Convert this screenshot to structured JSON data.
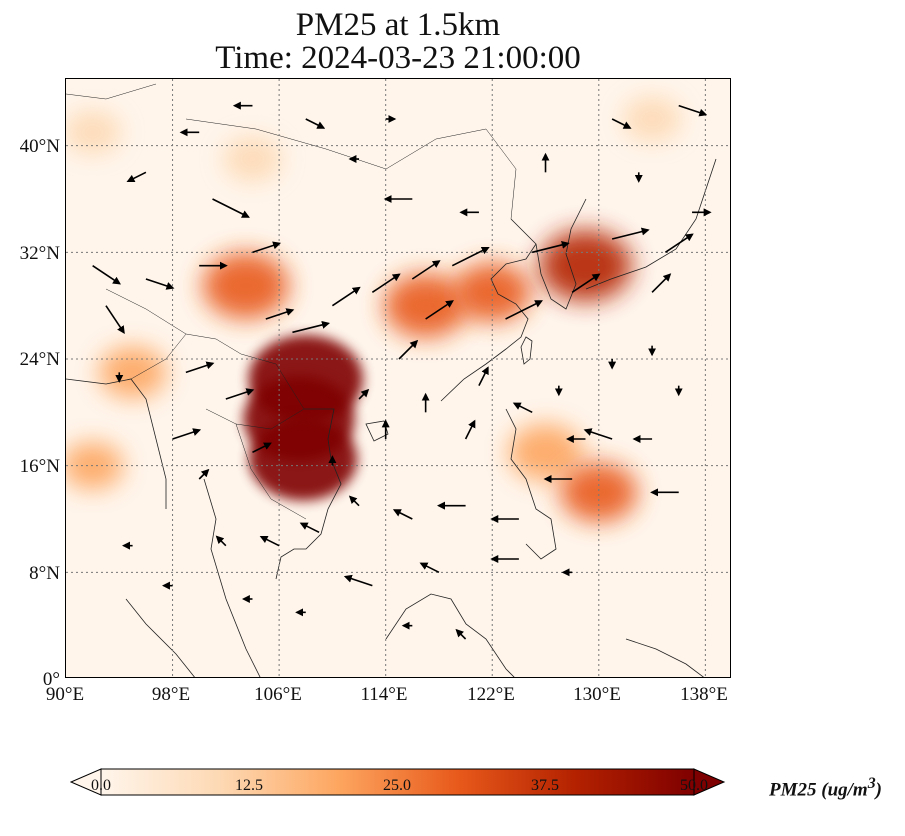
{
  "title": {
    "line1": "PM25 at 1.5km",
    "line2": "Time: 2024-03-23 21:00:00"
  },
  "map": {
    "lat_ticks": [
      "40°N",
      "32°N",
      "24°N",
      "16°N",
      "8°N",
      "0°"
    ],
    "lon_ticks": [
      "90°E",
      "98°E",
      "106°E",
      "114°E",
      "122°E",
      "130°E",
      "138°E"
    ],
    "gridlines": true,
    "extent": {
      "lon": [
        90,
        140
      ],
      "lat": [
        0,
        45
      ]
    }
  },
  "colorbar": {
    "label": "PM25 (ug/m",
    "label_sup": "3",
    "label_close": ")",
    "ticks": [
      "0.0",
      "12.5",
      "25.0",
      "37.5",
      "50.0"
    ],
    "range": [
      0,
      50
    ],
    "extend": "both",
    "colors": [
      "#fff5eb",
      "#fdd9b4",
      "#fda660",
      "#e85a1b",
      "#b32100",
      "#7f0000"
    ]
  },
  "chart_data": {
    "type": "heatmap",
    "variable": "PM25",
    "unit": "ug/m3",
    "hotspots": [
      {
        "lon": 108.0,
        "lat": 22.5,
        "value": 50
      },
      {
        "lon": 107.5,
        "lat": 19.5,
        "value": 48
      },
      {
        "lon": 107.8,
        "lat": 16.5,
        "value": 46
      },
      {
        "lon": 103.5,
        "lat": 29.5,
        "value": 32
      },
      {
        "lon": 117.0,
        "lat": 28.0,
        "value": 30
      },
      {
        "lon": 122.0,
        "lat": 29.0,
        "value": 26
      },
      {
        "lon": 129.0,
        "lat": 31.0,
        "value": 36
      },
      {
        "lon": 126.0,
        "lat": 17.0,
        "value": 24
      },
      {
        "lon": 130.0,
        "lat": 14.0,
        "value": 26
      },
      {
        "lon": 95.0,
        "lat": 23.0,
        "value": 20
      },
      {
        "lon": 104.0,
        "lat": 39.0,
        "value": 14
      },
      {
        "lon": 92.0,
        "lat": 41.0,
        "value": 13
      },
      {
        "lon": 134.0,
        "lat": 42.0,
        "value": 14
      },
      {
        "lon": 92.0,
        "lat": 16.0,
        "value": 16
      }
    ],
    "wind": [
      {
        "lon": 92,
        "lat": 31,
        "u": 3,
        "v": -2
      },
      {
        "lon": 93,
        "lat": 28,
        "u": 2,
        "v": -3
      },
      {
        "lon": 96,
        "lat": 30,
        "u": 3,
        "v": -1
      },
      {
        "lon": 101,
        "lat": 36,
        "u": 4,
        "v": -2
      },
      {
        "lon": 100,
        "lat": 31,
        "u": 3,
        "v": 0
      },
      {
        "lon": 104,
        "lat": 32,
        "u": 3,
        "v": 1
      },
      {
        "lon": 105,
        "lat": 27,
        "u": 3,
        "v": 1
      },
      {
        "lon": 107,
        "lat": 26,
        "u": 4,
        "v": 1
      },
      {
        "lon": 110,
        "lat": 28,
        "u": 3,
        "v": 2
      },
      {
        "lon": 113,
        "lat": 29,
        "u": 3,
        "v": 2
      },
      {
        "lon": 116,
        "lat": 30,
        "u": 3,
        "v": 2
      },
      {
        "lon": 117,
        "lat": 27,
        "u": 3,
        "v": 2
      },
      {
        "lon": 119,
        "lat": 31,
        "u": 4,
        "v": 2
      },
      {
        "lon": 123,
        "lat": 27,
        "u": 4,
        "v": 2
      },
      {
        "lon": 125,
        "lat": 32,
        "u": 4,
        "v": 1
      },
      {
        "lon": 128,
        "lat": 29,
        "u": 3,
        "v": 2
      },
      {
        "lon": 131,
        "lat": 33,
        "u": 4,
        "v": 1
      },
      {
        "lon": 134,
        "lat": 29,
        "u": 2,
        "v": 2
      },
      {
        "lon": 135,
        "lat": 32,
        "u": 3,
        "v": 2
      },
      {
        "lon": 137,
        "lat": 35,
        "u": 2,
        "v": 0
      },
      {
        "lon": 96,
        "lat": 38,
        "u": -2,
        "v": -1
      },
      {
        "lon": 100,
        "lat": 41,
        "u": -2,
        "v": 0
      },
      {
        "lon": 104,
        "lat": 43,
        "u": -2,
        "v": 0
      },
      {
        "lon": 108,
        "lat": 42,
        "u": 2,
        "v": -1
      },
      {
        "lon": 112,
        "lat": 39,
        "u": -1,
        "v": 0
      },
      {
        "lon": 116,
        "lat": 36,
        "u": -3,
        "v": 0
      },
      {
        "lon": 121,
        "lat": 35,
        "u": -2,
        "v": 0
      },
      {
        "lon": 126,
        "lat": 38,
        "u": 0,
        "v": 2
      },
      {
        "lon": 131,
        "lat": 42,
        "u": 2,
        "v": -1
      },
      {
        "lon": 136,
        "lat": 43,
        "u": 3,
        "v": -1
      },
      {
        "lon": 94,
        "lat": 23,
        "u": 0,
        "v": -1
      },
      {
        "lon": 99,
        "lat": 23,
        "u": 3,
        "v": 1
      },
      {
        "lon": 102,
        "lat": 21,
        "u": 3,
        "v": 1
      },
      {
        "lon": 98,
        "lat": 18,
        "u": 3,
        "v": 1
      },
      {
        "lon": 100,
        "lat": 15,
        "u": 1,
        "v": 1
      },
      {
        "lon": 104,
        "lat": 17,
        "u": 2,
        "v": 1
      },
      {
        "lon": 112,
        "lat": 21,
        "u": 1,
        "v": 1
      },
      {
        "lon": 115,
        "lat": 24,
        "u": 2,
        "v": 2
      },
      {
        "lon": 114,
        "lat": 18,
        "u": 0,
        "v": 2
      },
      {
        "lon": 117,
        "lat": 20,
        "u": 0,
        "v": 2
      },
      {
        "lon": 120,
        "lat": 18,
        "u": 1,
        "v": 2
      },
      {
        "lon": 121,
        "lat": 22,
        "u": 1,
        "v": 2
      },
      {
        "lon": 125,
        "lat": 20,
        "u": -2,
        "v": 1
      },
      {
        "lon": 129,
        "lat": 18,
        "u": -2,
        "v": 0
      },
      {
        "lon": 131,
        "lat": 18,
        "u": -3,
        "v": 1
      },
      {
        "lon": 134,
        "lat": 18,
        "u": -2,
        "v": 0
      },
      {
        "lon": 136,
        "lat": 14,
        "u": -3,
        "v": 0
      },
      {
        "lon": 128,
        "lat": 15,
        "u": -3,
        "v": 0
      },
      {
        "lon": 124,
        "lat": 12,
        "u": -3,
        "v": 0
      },
      {
        "lon": 120,
        "lat": 13,
        "u": -3,
        "v": 0
      },
      {
        "lon": 116,
        "lat": 12,
        "u": -2,
        "v": 1
      },
      {
        "lon": 112,
        "lat": 13,
        "u": -1,
        "v": 1
      },
      {
        "lon": 110,
        "lat": 16,
        "u": 0,
        "v": 1
      },
      {
        "lon": 109,
        "lat": 11,
        "u": -2,
        "v": 1
      },
      {
        "lon": 106,
        "lat": 10,
        "u": -2,
        "v": 1
      },
      {
        "lon": 102,
        "lat": 10,
        "u": -1,
        "v": 1
      },
      {
        "lon": 98,
        "lat": 7,
        "u": -1,
        "v": 0
      },
      {
        "lon": 95,
        "lat": 10,
        "u": -1,
        "v": 0
      },
      {
        "lon": 104,
        "lat": 6,
        "u": -1,
        "v": 0
      },
      {
        "lon": 108,
        "lat": 5,
        "u": -1,
        "v": 0
      },
      {
        "lon": 113,
        "lat": 7,
        "u": -3,
        "v": 1
      },
      {
        "lon": 118,
        "lat": 8,
        "u": -2,
        "v": 1
      },
      {
        "lon": 124,
        "lat": 9,
        "u": -3,
        "v": 0
      },
      {
        "lon": 128,
        "lat": 8,
        "u": -1,
        "v": 0
      },
      {
        "lon": 116,
        "lat": 4,
        "u": -1,
        "v": 0
      },
      {
        "lon": 120,
        "lat": 3,
        "u": -1,
        "v": 1
      },
      {
        "lon": 110,
        "lat": 2,
        "u": 0,
        "v": 0
      },
      {
        "lon": 131,
        "lat": 9,
        "u": 0,
        "v": 0
      },
      {
        "lon": 134,
        "lat": 25,
        "u": 0,
        "v": -1
      },
      {
        "lon": 131,
        "lat": 24,
        "u": 0,
        "v": -1
      },
      {
        "lon": 127,
        "lat": 22,
        "u": 0,
        "v": -1
      },
      {
        "lon": 136,
        "lat": 22,
        "u": 0,
        "v": -1
      },
      {
        "lon": 133,
        "lat": 38,
        "u": 0,
        "v": -1
      },
      {
        "lon": 114,
        "lat": 42,
        "u": 1,
        "v": 0
      }
    ]
  }
}
